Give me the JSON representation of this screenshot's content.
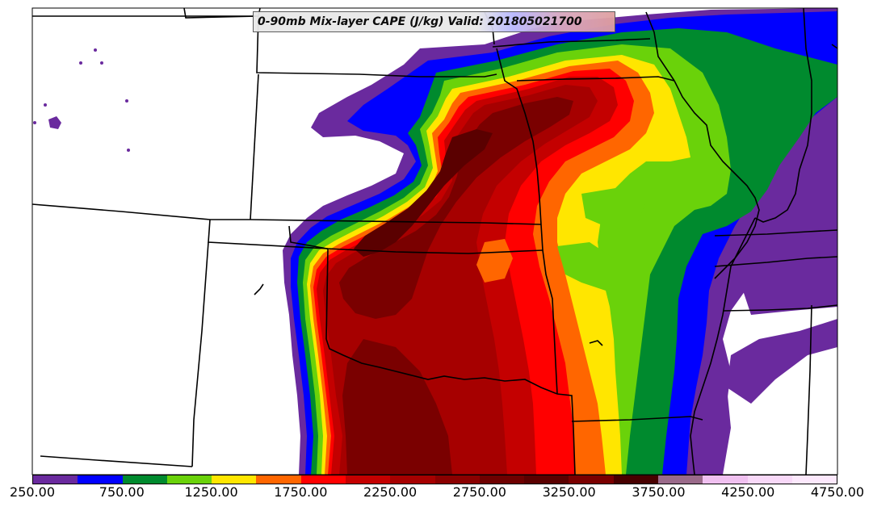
{
  "title": "0-90mb Mix-layer CAPE (J/kg) Valid: 201805021700",
  "field": {
    "name": "0-90mb Mix-layer CAPE",
    "units": "J/kg",
    "valid": "201805021700"
  },
  "colorbar": {
    "min": 250,
    "max": 4750,
    "interval": 250,
    "tick_labels": [
      "250.00",
      "750.00",
      "1250.00",
      "1750.00",
      "2250.00",
      "2750.00",
      "3250.00",
      "3750.00",
      "4250.00",
      "4750.00"
    ],
    "colors": [
      "#6a2a9e",
      "#0000ff",
      "#008a2e",
      "#6ad20a",
      "#ffe600",
      "#ff6600",
      "#ff0000",
      "#c40000",
      "#a60000",
      "#8a0000",
      "#6e0000",
      "#5a0000",
      "#7a0000",
      "#480000",
      "#9a6a8a",
      "#f0c0f0",
      "#f8d8f8",
      "#fce8fc"
    ]
  },
  "map": {
    "domain": "Central Great Plains (KS, OK, MO, NE, AR)",
    "background": "#ffffff",
    "border_color": "#000000"
  }
}
